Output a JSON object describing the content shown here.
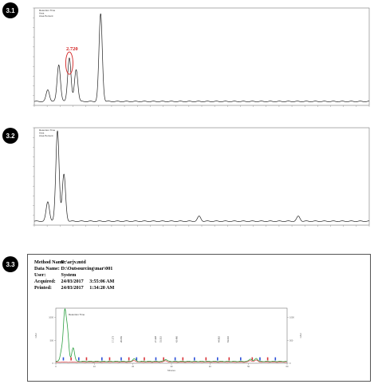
{
  "panels": [
    {
      "label": "3.1"
    },
    {
      "label": "3.2"
    },
    {
      "label": "3.3"
    }
  ],
  "method_info": {
    "rows": [
      {
        "key": "Method Name:",
        "value": "D:\\arjv.mtd",
        "extra": ""
      },
      {
        "key": "Data Name:",
        "value": "D:\\Outsourcing\\mar\\001",
        "extra": ""
      },
      {
        "key": "User:",
        "value": "System",
        "extra": ""
      },
      {
        "key": "Acquired:",
        "value": "24/03/2017",
        "extra": "3:55:06 AM"
      },
      {
        "key": "Printed:",
        "value": "24/03/2017",
        "extra": "1:34:20 AM"
      }
    ]
  },
  "colors": {
    "trace": "#222222",
    "annotation_red": "#d22020",
    "trace_green": "#2ea043",
    "trace_red": "#d8353a",
    "marker_blue": "#2b4fd8"
  },
  "chart_data": [
    {
      "type": "line",
      "xlim": [
        0,
        26
      ],
      "ylim": [
        0,
        1
      ],
      "legend": "top-left",
      "legend_items": [
        "Retention Time",
        "Area",
        "Area Percent"
      ],
      "annotations": [
        {
          "text": "2.720",
          "color": "#d22020",
          "x": 2.72
        }
      ],
      "peaks": [
        {
          "x": 1.05,
          "height": 0.12
        },
        {
          "x": 1.9,
          "height": 0.38
        },
        {
          "x": 2.72,
          "height": 0.45
        },
        {
          "x": 3.25,
          "height": 0.33
        },
        {
          "x": 5.15,
          "height": 0.9
        }
      ]
    },
    {
      "type": "line",
      "xlim": [
        0,
        26
      ],
      "ylim": [
        0,
        1
      ],
      "legend": "top-left",
      "legend_items": [
        "Retention Time",
        "Area",
        "Area Percent"
      ],
      "peaks": [
        {
          "x": 1.05,
          "height": 0.2
        },
        {
          "x": 1.8,
          "height": 0.93
        },
        {
          "x": 2.3,
          "height": 0.48
        },
        {
          "x": 12.8,
          "height": 0.05
        },
        {
          "x": 20.5,
          "height": 0.05
        }
      ]
    },
    {
      "type": "line",
      "xlim": [
        0,
        60
      ],
      "ylim": [
        0,
        1200
      ],
      "y_ticks": [
        0,
        500,
        1000
      ],
      "x_ticks": [
        0,
        10,
        20,
        30,
        40,
        50,
        60
      ],
      "legend": "top-left",
      "legend_items": [
        "Retention Time"
      ],
      "y_unit": "mAU",
      "x_unit": "Minutes",
      "peak_labels": [
        "17.173",
        "26.059",
        "27.428",
        "31.515",
        "42.466",
        "44.862",
        "53.016"
      ],
      "peaks": [
        {
          "x": 1.5,
          "height": 230
        },
        {
          "x": 2.3,
          "height": 1020
        },
        {
          "x": 3.0,
          "height": 640
        },
        {
          "x": 4.5,
          "height": 300
        },
        {
          "x": 20.3,
          "height": 60
        },
        {
          "x": 28.5,
          "height": 45
        },
        {
          "x": 50.5,
          "height": 55
        },
        {
          "x": 52.0,
          "height": 70
        }
      ]
    }
  ]
}
